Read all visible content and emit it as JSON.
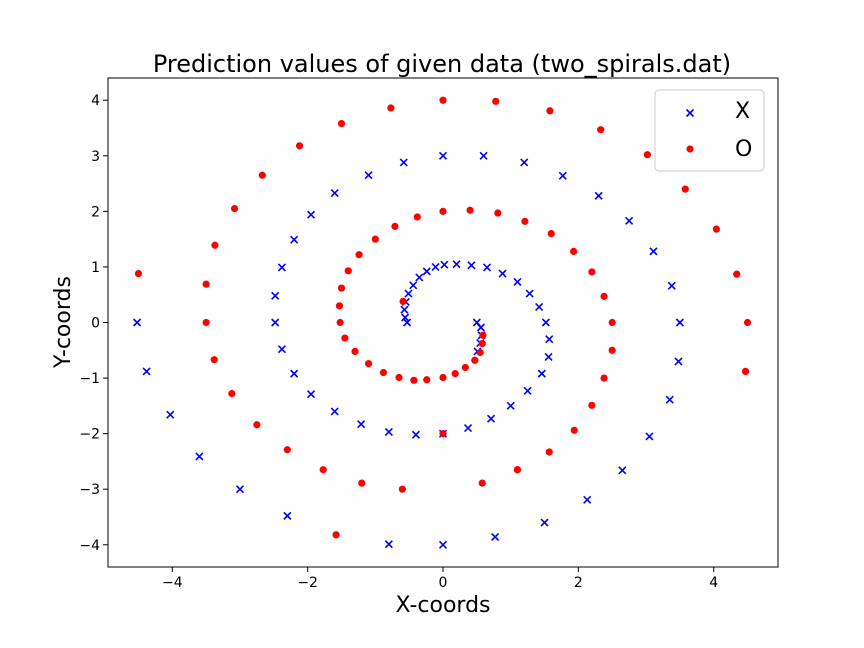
{
  "chart_data": {
    "type": "scatter",
    "title": "Prediction values of given data (two_spirals.dat)",
    "xlabel": "X-coords",
    "ylabel": "Y-coords",
    "xlim": [
      -4.95,
      4.95
    ],
    "ylim": [
      -4.4,
      4.4
    ],
    "xticks": [
      -4,
      -2,
      0,
      2,
      4
    ],
    "yticks": [
      -4,
      -3,
      -2,
      -1,
      0,
      1,
      2,
      3,
      4
    ],
    "legend_position": "top-right",
    "series": [
      {
        "name": "X",
        "marker": "x",
        "color": "#0000ff",
        "points": [
          [
            0.5,
            0
          ],
          [
            0.56,
            -0.09
          ],
          [
            0.57,
            -0.23
          ],
          [
            0.55,
            -0.37
          ],
          [
            0.51,
            -0.52
          ],
          [
            -0.53,
            0
          ],
          [
            -0.56,
            0.09
          ],
          [
            -0.57,
            0.23
          ],
          [
            -0.55,
            0.37
          ],
          [
            -0.51,
            0.52
          ],
          [
            -0.44,
            0.67
          ],
          [
            -0.35,
            0.81
          ],
          [
            -0.24,
            0.92
          ],
          [
            -0.11,
            1.0
          ],
          [
            0.02,
            1.04
          ],
          [
            0.2,
            1.05
          ],
          [
            0.42,
            1.03
          ],
          [
            0.65,
            0.99
          ],
          [
            0.88,
            0.88
          ],
          [
            1.1,
            0.73
          ],
          [
            1.28,
            0.52
          ],
          [
            1.42,
            0.28
          ],
          [
            1.52,
            0.0
          ],
          [
            1.57,
            -0.3
          ],
          [
            1.56,
            -0.62
          ],
          [
            1.46,
            -0.92
          ],
          [
            1.25,
            -1.23
          ],
          [
            1.0,
            -1.5
          ],
          [
            0.71,
            -1.73
          ],
          [
            0.37,
            -1.9
          ],
          [
            0.0,
            -2.0
          ],
          [
            -0.4,
            -2.02
          ],
          [
            -0.8,
            -1.97
          ],
          [
            -1.21,
            -1.83
          ],
          [
            -1.6,
            -1.6
          ],
          [
            -1.95,
            -1.29
          ],
          [
            -2.2,
            -0.92
          ],
          [
            -2.38,
            -0.48
          ],
          [
            -2.48,
            0.0
          ],
          [
            -2.48,
            0.48
          ],
          [
            -2.38,
            0.99
          ],
          [
            -2.2,
            1.49
          ],
          [
            -1.95,
            1.94
          ],
          [
            -1.6,
            2.33
          ],
          [
            -1.1,
            2.65
          ],
          [
            -0.58,
            2.88
          ],
          [
            0.0,
            3.0
          ],
          [
            0.6,
            3.0
          ],
          [
            1.2,
            2.88
          ],
          [
            1.77,
            2.64
          ],
          [
            2.3,
            2.28
          ],
          [
            2.75,
            1.83
          ],
          [
            3.11,
            1.28
          ],
          [
            3.38,
            0.66
          ],
          [
            3.5,
            0.0
          ],
          [
            3.48,
            -0.7
          ],
          [
            3.35,
            -1.39
          ],
          [
            3.05,
            -2.05
          ],
          [
            2.65,
            -2.66
          ],
          [
            2.13,
            -3.19
          ],
          [
            1.5,
            -3.6
          ],
          [
            0.77,
            -3.86
          ],
          [
            0.0,
            -4.0
          ],
          [
            -0.8,
            -3.99
          ],
          [
            -2.3,
            -3.48
          ],
          [
            -3.0,
            -3.0
          ],
          [
            -3.6,
            -2.41
          ],
          [
            -4.03,
            -1.66
          ],
          [
            -4.38,
            -0.88
          ],
          [
            -4.52,
            0.0
          ]
        ]
      },
      {
        "name": "O",
        "marker": "o",
        "color": "#ff0000",
        "points": [
          [
            -0.59,
            0.38
          ],
          [
            0.59,
            -0.23
          ],
          [
            0.58,
            -0.38
          ],
          [
            0.55,
            -0.54
          ],
          [
            0.47,
            -0.68
          ],
          [
            0.33,
            -0.81
          ],
          [
            0.18,
            -0.92
          ],
          [
            0.0,
            -0.99
          ],
          [
            -0.24,
            -1.03
          ],
          [
            -0.43,
            -1.04
          ],
          [
            -0.65,
            -0.99
          ],
          [
            -0.88,
            -0.9
          ],
          [
            -1.1,
            -0.74
          ],
          [
            -1.3,
            -0.52
          ],
          [
            -1.45,
            -0.28
          ],
          [
            -1.52,
            0.0
          ],
          [
            -1.53,
            0.3
          ],
          [
            -1.5,
            0.62
          ],
          [
            -1.4,
            0.93
          ],
          [
            -1.24,
            1.22
          ],
          [
            -1.0,
            1.5
          ],
          [
            -0.71,
            1.73
          ],
          [
            -0.38,
            1.9
          ],
          [
            0.0,
            2.0
          ],
          [
            0.4,
            2.02
          ],
          [
            0.81,
            1.97
          ],
          [
            1.21,
            1.82
          ],
          [
            1.6,
            1.6
          ],
          [
            1.93,
            1.28
          ],
          [
            2.2,
            0.91
          ],
          [
            2.38,
            0.47
          ],
          [
            2.5,
            0.0
          ],
          [
            2.5,
            -0.5
          ],
          [
            2.38,
            -1.0
          ],
          [
            2.2,
            -1.49
          ],
          [
            1.94,
            -1.94
          ],
          [
            1.57,
            -2.33
          ],
          [
            1.1,
            -2.65
          ],
          [
            0.58,
            -2.89
          ],
          [
            0.0,
            -2.0
          ],
          [
            -0.6,
            -3.0
          ],
          [
            -1.2,
            -2.89
          ],
          [
            -1.77,
            -2.65
          ],
          [
            -2.3,
            -2.29
          ],
          [
            -2.75,
            -1.84
          ],
          [
            -3.12,
            -1.28
          ],
          [
            -3.38,
            -0.67
          ],
          [
            -3.5,
            0.0
          ],
          [
            -3.5,
            0.69
          ],
          [
            -3.37,
            1.39
          ],
          [
            -3.08,
            2.05
          ],
          [
            -2.67,
            2.65
          ],
          [
            -2.12,
            3.18
          ],
          [
            -1.5,
            3.58
          ],
          [
            -0.77,
            3.86
          ],
          [
            0.0,
            4.0
          ],
          [
            0.78,
            3.98
          ],
          [
            1.58,
            3.81
          ],
          [
            2.33,
            3.47
          ],
          [
            3.02,
            3.02
          ],
          [
            3.58,
            2.4
          ],
          [
            4.04,
            1.68
          ],
          [
            4.34,
            0.87
          ],
          [
            4.5,
            0.0
          ],
          [
            4.47,
            -0.88
          ],
          [
            -4.5,
            0.88
          ],
          [
            -1.58,
            -3.82
          ],
          [
            1.1,
            -2.65
          ]
        ]
      }
    ]
  }
}
